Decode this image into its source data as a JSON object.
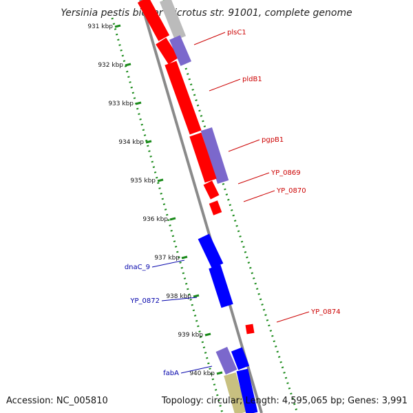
{
  "title": "Yersinia pestis biovar Microtus str. 91001, complete genome",
  "footer": {
    "accession": "Accession: NC_005810",
    "summary": "Topology: circular; Length: 4,595,065 bp; Genes: 3,991"
  },
  "colors": {
    "backbone": "#888888",
    "tick": "#1a8a1a",
    "forward_label": "#cc0000",
    "reverse_label": "#0000aa",
    "gene_red": "#ff0000",
    "gene_blue": "#0000ff",
    "gene_violet": "#7b68cc",
    "gene_gray": "#bbbbbb",
    "gene_khaki": "#c8c080"
  },
  "scale": {
    "ticks": [
      "931 kbp",
      "932 kbp",
      "933 kbp",
      "934 kbp",
      "935 kbp",
      "936 kbp",
      "937 kbp",
      "938 kbp",
      "939 kbp",
      "940 kbp"
    ]
  },
  "genes": [
    {
      "label": "plsC1",
      "color": "gene_red",
      "track": "left"
    },
    {
      "label": "",
      "color": "gene_gray",
      "track": "right"
    },
    {
      "label": "",
      "color": "gene_red",
      "track": "left"
    },
    {
      "label": "",
      "color": "gene_violet",
      "track": "right"
    },
    {
      "label": "pldB1",
      "color": "gene_red",
      "track": "left"
    },
    {
      "label": "pgpB1",
      "color": "gene_violet",
      "track": "right"
    },
    {
      "label": "",
      "color": "gene_red",
      "track": "left"
    },
    {
      "label": "YP_0869",
      "color": "gene_red",
      "track": "left"
    },
    {
      "label": "YP_0870",
      "color": "gene_red",
      "track": "left"
    },
    {
      "label": "dnaC_9",
      "color": "gene_blue",
      "track": "left"
    },
    {
      "label": "YP_0872",
      "color": "gene_blue",
      "track": "left"
    },
    {
      "label": "YP_0874",
      "color": "gene_red",
      "track": "right"
    },
    {
      "label": "fabA",
      "color": "gene_violet",
      "track": "left"
    },
    {
      "label": "",
      "color": "gene_blue",
      "track": "right"
    },
    {
      "label": "",
      "color": "gene_khaki",
      "track": "left"
    },
    {
      "label": "",
      "color": "gene_blue",
      "track": "right"
    }
  ]
}
